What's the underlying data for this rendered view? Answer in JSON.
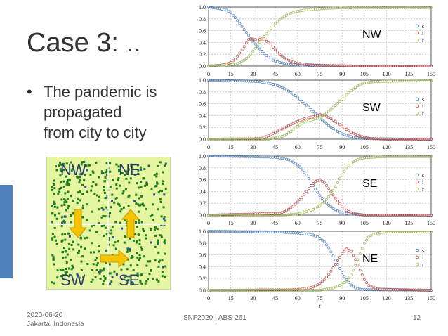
{
  "slide": {
    "title": "Case 3: ..",
    "bullet": "The pandemic is propagated from city to city",
    "bullet_lines": [
      "The pandemic is",
      "propagated",
      "from city to city"
    ],
    "footer_date": "2020-06-20",
    "footer_location": "Jakarta, Indonesia",
    "footer_center": "SNF2020 | ABS-261",
    "page_number": "12"
  },
  "grid_image": {
    "labels": [
      "NW",
      "NE",
      "SW",
      "SE"
    ],
    "colors": {
      "grid": "#1e7d1e",
      "background": "#e6f5a0",
      "arrow": "#f5c400",
      "border": "#c8dc9a"
    }
  },
  "colors": {
    "s": "#4f81bd",
    "i": "#c0504d",
    "r": "#9bbb59",
    "accent": "#4f81bd"
  },
  "chart_data": [
    {
      "type": "scatter",
      "panel_label": "NW",
      "x_ticks": [
        0,
        15,
        30,
        45,
        60,
        75,
        90,
        105,
        120,
        135,
        150
      ],
      "y_ticks": [
        0.0,
        0.2,
        0.4,
        0.6,
        0.8,
        1.0
      ],
      "xlim": [
        0,
        150
      ],
      "ylim": [
        0,
        1
      ],
      "grid": true,
      "legend": "right",
      "xlabel": "",
      "series": [
        {
          "name": "s",
          "x": [
            0,
            6,
            12,
            15,
            18,
            21,
            24,
            27,
            30,
            33,
            36,
            39,
            42,
            45,
            50,
            55,
            60,
            70,
            80,
            100,
            150
          ],
          "y": [
            1.0,
            0.98,
            0.95,
            0.9,
            0.82,
            0.72,
            0.62,
            0.52,
            0.42,
            0.33,
            0.25,
            0.18,
            0.12,
            0.08,
            0.05,
            0.03,
            0.02,
            0.01,
            0.01,
            0.0,
            0.0
          ]
        },
        {
          "name": "i",
          "x": [
            0,
            10,
            15,
            18,
            21,
            24,
            27,
            30,
            33,
            36,
            39,
            42,
            45,
            48,
            51,
            54,
            57,
            60,
            65,
            70,
            80,
            100,
            150
          ],
          "y": [
            0.0,
            0.02,
            0.06,
            0.12,
            0.22,
            0.33,
            0.45,
            0.46,
            0.44,
            0.47,
            0.42,
            0.36,
            0.28,
            0.2,
            0.14,
            0.1,
            0.07,
            0.05,
            0.03,
            0.02,
            0.01,
            0.0,
            0.0
          ]
        },
        {
          "name": "r",
          "x": [
            0,
            18,
            21,
            24,
            27,
            30,
            33,
            36,
            39,
            42,
            45,
            48,
            51,
            54,
            57,
            60,
            65,
            70,
            75,
            80,
            100,
            150
          ],
          "y": [
            0.0,
            0.03,
            0.06,
            0.1,
            0.16,
            0.25,
            0.35,
            0.45,
            0.55,
            0.64,
            0.72,
            0.79,
            0.84,
            0.88,
            0.91,
            0.93,
            0.95,
            0.96,
            0.97,
            0.98,
            0.99,
            0.99
          ]
        }
      ]
    },
    {
      "type": "scatter",
      "panel_label": "SW",
      "x_ticks": [
        0,
        15,
        30,
        45,
        60,
        75,
        90,
        105,
        120,
        135,
        150
      ],
      "y_ticks": [
        0.0,
        0.2,
        0.4,
        0.6,
        0.8,
        1.0
      ],
      "xlim": [
        0,
        150
      ],
      "ylim": [
        0,
        1
      ],
      "grid": true,
      "legend": "right",
      "xlabel": "",
      "series": [
        {
          "name": "s",
          "x": [
            0,
            20,
            30,
            35,
            40,
            45,
            50,
            55,
            60,
            65,
            70,
            75,
            80,
            85,
            90,
            95,
            100,
            105,
            150
          ],
          "y": [
            1.0,
            0.99,
            0.98,
            0.97,
            0.95,
            0.92,
            0.87,
            0.8,
            0.71,
            0.6,
            0.48,
            0.36,
            0.25,
            0.16,
            0.09,
            0.05,
            0.02,
            0.01,
            0.0
          ]
        },
        {
          "name": "i",
          "x": [
            0,
            35,
            40,
            45,
            50,
            55,
            60,
            65,
            70,
            75,
            80,
            85,
            90,
            95,
            100,
            105,
            110,
            120,
            150
          ],
          "y": [
            0.0,
            0.01,
            0.05,
            0.12,
            0.18,
            0.24,
            0.3,
            0.35,
            0.38,
            0.42,
            0.38,
            0.31,
            0.22,
            0.13,
            0.07,
            0.03,
            0.01,
            0.0,
            0.0
          ]
        },
        {
          "name": "r",
          "x": [
            0,
            40,
            50,
            55,
            60,
            65,
            70,
            75,
            80,
            85,
            90,
            95,
            100,
            105,
            110,
            120,
            150
          ],
          "y": [
            0.0,
            0.0,
            0.05,
            0.12,
            0.22,
            0.3,
            0.33,
            0.36,
            0.45,
            0.56,
            0.68,
            0.8,
            0.9,
            0.95,
            0.97,
            0.98,
            0.99
          ]
        }
      ]
    },
    {
      "type": "scatter",
      "panel_label": "SE",
      "x_ticks": [
        0,
        15,
        30,
        45,
        60,
        75,
        90,
        105,
        120,
        135,
        150
      ],
      "y_ticks": [
        0.0,
        0.2,
        0.4,
        0.6,
        0.8,
        1.0
      ],
      "xlim": [
        0,
        150
      ],
      "ylim": [
        0,
        1
      ],
      "grid": true,
      "legend": "right",
      "xlabel": "",
      "series": [
        {
          "name": "s",
          "x": [
            0,
            30,
            45,
            50,
            55,
            60,
            63,
            66,
            69,
            72,
            75,
            78,
            81,
            84,
            87,
            90,
            95,
            100,
            105,
            150
          ],
          "y": [
            1.0,
            0.99,
            0.98,
            0.96,
            0.93,
            0.85,
            0.78,
            0.68,
            0.56,
            0.44,
            0.33,
            0.24,
            0.17,
            0.11,
            0.07,
            0.04,
            0.02,
            0.01,
            0.0,
            0.0
          ]
        },
        {
          "name": "i",
          "x": [
            0,
            48,
            51,
            54,
            57,
            60,
            63,
            66,
            69,
            72,
            75,
            78,
            81,
            84,
            87,
            90,
            93,
            96,
            100,
            105,
            150
          ],
          "y": [
            0.0,
            0.03,
            0.06,
            0.1,
            0.15,
            0.22,
            0.3,
            0.4,
            0.5,
            0.57,
            0.6,
            0.55,
            0.45,
            0.34,
            0.24,
            0.15,
            0.08,
            0.04,
            0.02,
            0.0,
            0.0
          ]
        },
        {
          "name": "r",
          "x": [
            0,
            50,
            60,
            65,
            70,
            75,
            78,
            81,
            84,
            87,
            90,
            93,
            96,
            100,
            105,
            110,
            120,
            150
          ],
          "y": [
            0.0,
            0.0,
            0.02,
            0.05,
            0.09,
            0.16,
            0.22,
            0.31,
            0.42,
            0.55,
            0.68,
            0.8,
            0.88,
            0.94,
            0.97,
            0.98,
            0.99,
            0.99
          ]
        }
      ]
    },
    {
      "type": "scatter",
      "panel_label": "NE",
      "x_ticks": [
        0,
        15,
        30,
        45,
        60,
        75,
        90,
        105,
        120,
        135,
        150
      ],
      "y_ticks": [
        0.0,
        0.2,
        0.4,
        0.6,
        0.8,
        1.0
      ],
      "xlim": [
        0,
        150
      ],
      "ylim": [
        0,
        1
      ],
      "grid": true,
      "legend": "right",
      "xlabel": "t",
      "series": [
        {
          "name": "s",
          "x": [
            0,
            45,
            60,
            70,
            74,
            78,
            81,
            84,
            87,
            90,
            93,
            96,
            99,
            102,
            105,
            150
          ],
          "y": [
            1.0,
            0.99,
            0.97,
            0.94,
            0.9,
            0.82,
            0.72,
            0.58,
            0.44,
            0.3,
            0.18,
            0.09,
            0.04,
            0.02,
            0.01,
            0.0
          ]
        },
        {
          "name": "i",
          "x": [
            0,
            60,
            70,
            74,
            78,
            81,
            84,
            87,
            90,
            93,
            96,
            99,
            102,
            105,
            108,
            115,
            150
          ],
          "y": [
            0.0,
            0.01,
            0.05,
            0.1,
            0.18,
            0.27,
            0.38,
            0.5,
            0.62,
            0.7,
            0.66,
            0.52,
            0.34,
            0.18,
            0.08,
            0.02,
            0.0
          ]
        },
        {
          "name": "r",
          "x": [
            0,
            75,
            84,
            90,
            93,
            96,
            99,
            102,
            105,
            108,
            111,
            115,
            120,
            150
          ],
          "y": [
            0.0,
            0.0,
            0.04,
            0.1,
            0.16,
            0.26,
            0.42,
            0.62,
            0.8,
            0.9,
            0.95,
            0.97,
            0.99,
            0.99
          ]
        }
      ]
    }
  ]
}
